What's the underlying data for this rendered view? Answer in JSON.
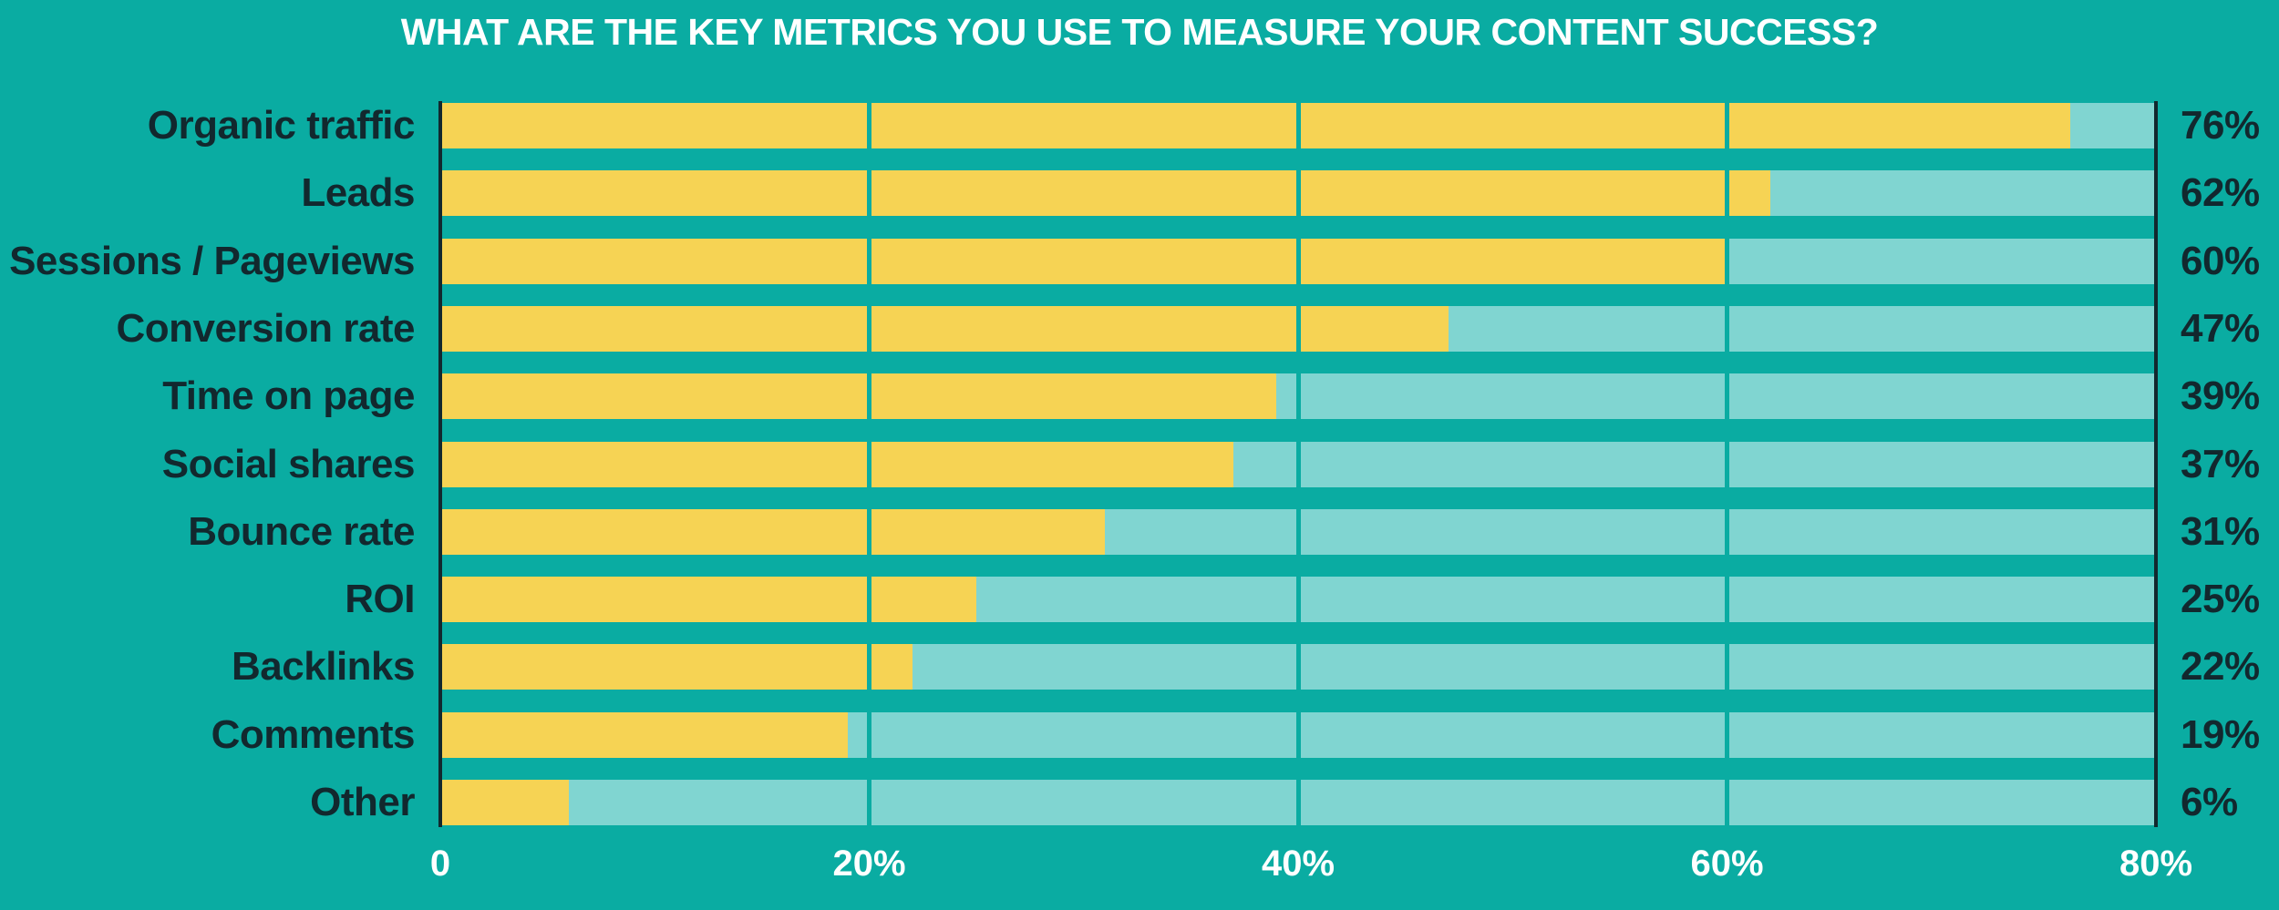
{
  "page": {
    "background_color": "#0aaca2"
  },
  "chart_data": {
    "type": "bar",
    "orientation": "horizontal",
    "title": "WHAT ARE THE KEY METRICS YOU USE TO MEASURE YOUR CONTENT SUCCESS?",
    "categories": [
      "Organic traffic",
      "Leads",
      "Sessions / Pageviews",
      "Conversion rate",
      "Time on page",
      "Social shares",
      "Bounce rate",
      "ROI",
      "Backlinks",
      "Comments",
      "Other"
    ],
    "values": [
      76,
      62,
      60,
      47,
      39,
      37,
      31,
      25,
      22,
      19,
      6
    ],
    "value_labels": [
      "76%",
      "62%",
      "60%",
      "47%",
      "39%",
      "37%",
      "31%",
      "25%",
      "22%",
      "19%",
      "6%"
    ],
    "xlabel": "",
    "ylabel": "",
    "xlim": [
      0,
      80
    ],
    "x_ticks": [
      {
        "value": 0,
        "label": "0"
      },
      {
        "value": 20,
        "label": "20%"
      },
      {
        "value": 40,
        "label": "40%"
      },
      {
        "value": 60,
        "label": "60%"
      },
      {
        "value": 80,
        "label": "80%"
      }
    ],
    "grid": true,
    "gridline_values": [
      20,
      40,
      60
    ],
    "legend": false,
    "colors": {
      "background": "#0aaca2",
      "bar_fill": "#f6d354",
      "bar_track": "#80d5d1",
      "axis_line": "#12282e",
      "category_text": "#12282e",
      "value_text": "#12282e",
      "title_text": "#ffffff",
      "tick_text": "#ffffff"
    }
  }
}
